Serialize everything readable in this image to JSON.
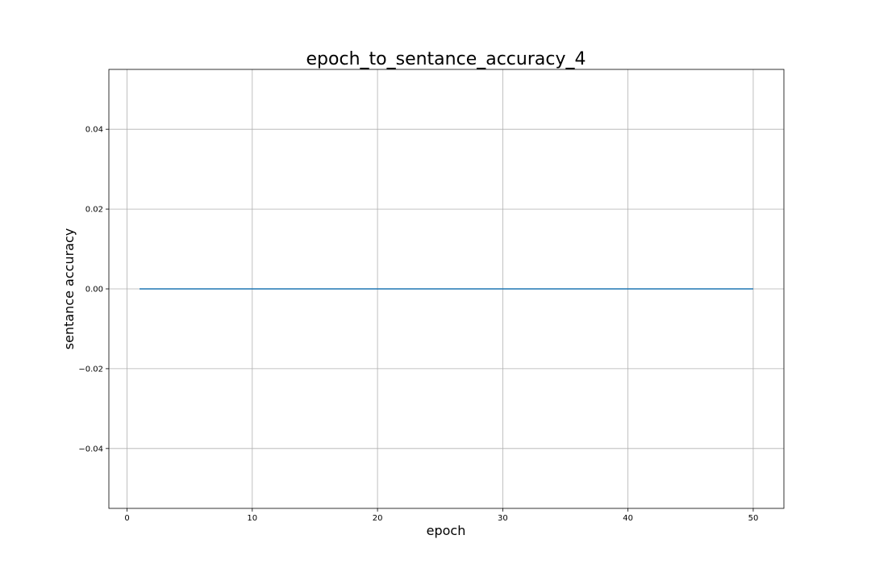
{
  "chart_data": {
    "type": "line",
    "title": "epoch_to_sentance_accuracy_4",
    "xlabel": "epoch",
    "ylabel": "sentance accuracy",
    "xlim": [
      -1.45,
      52.45
    ],
    "ylim": [
      -0.055,
      0.055
    ],
    "grid": true,
    "x_ticks": [
      0,
      10,
      20,
      30,
      40,
      50
    ],
    "x_tick_labels": [
      "0",
      "10",
      "20",
      "30",
      "40",
      "50"
    ],
    "y_ticks": [
      -0.04,
      -0.02,
      0.0,
      0.02,
      0.04
    ],
    "y_tick_labels": [
      "−0.04",
      "−0.02",
      "0.00",
      "0.02",
      "0.04"
    ],
    "series": [
      {
        "color": "#1f77b4",
        "x": [
          1,
          2,
          3,
          4,
          5,
          6,
          7,
          8,
          9,
          10,
          11,
          12,
          13,
          14,
          15,
          16,
          17,
          18,
          19,
          20,
          21,
          22,
          23,
          24,
          25,
          26,
          27,
          28,
          29,
          30,
          31,
          32,
          33,
          34,
          35,
          36,
          37,
          38,
          39,
          40,
          41,
          42,
          43,
          44,
          45,
          46,
          47,
          48,
          49,
          50
        ],
        "y": [
          0,
          0,
          0,
          0,
          0,
          0,
          0,
          0,
          0,
          0,
          0,
          0,
          0,
          0,
          0,
          0,
          0,
          0,
          0,
          0,
          0,
          0,
          0,
          0,
          0,
          0,
          0,
          0,
          0,
          0,
          0,
          0,
          0,
          0,
          0,
          0,
          0,
          0,
          0,
          0,
          0,
          0,
          0,
          0,
          0,
          0,
          0,
          0,
          0,
          0
        ]
      }
    ]
  }
}
